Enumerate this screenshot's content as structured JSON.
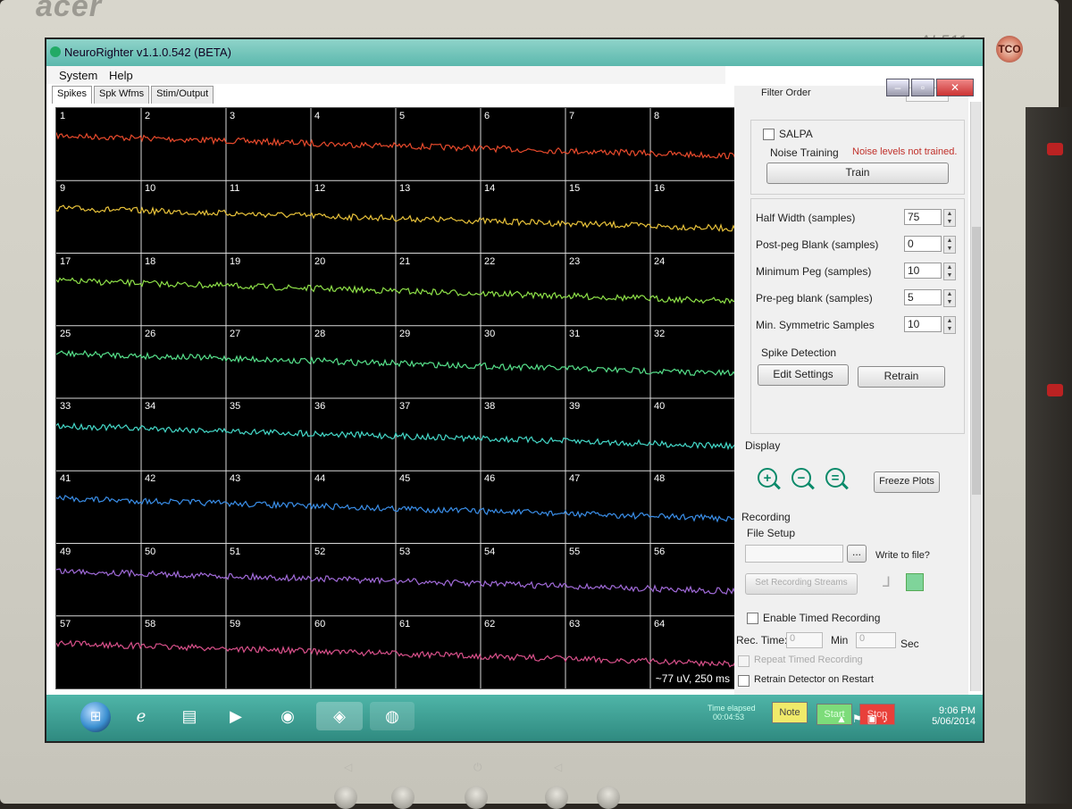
{
  "monitor": {
    "brand": "acer",
    "model": "AL511",
    "badge": "TCO"
  },
  "window": {
    "title": "NeuroRighter v1.1.0.542 (BETA)",
    "menu": [
      "System",
      "Help"
    ],
    "tabs": [
      "Spikes",
      "Spk Wfms",
      "Stim/Output"
    ]
  },
  "plot": {
    "channels": [
      "1",
      "2",
      "3",
      "4",
      "5",
      "6",
      "7",
      "8",
      "9",
      "10",
      "11",
      "12",
      "13",
      "14",
      "15",
      "16",
      "17",
      "18",
      "19",
      "20",
      "21",
      "22",
      "23",
      "24",
      "25",
      "26",
      "27",
      "28",
      "29",
      "30",
      "31",
      "32",
      "33",
      "34",
      "35",
      "36",
      "37",
      "38",
      "39",
      "40",
      "41",
      "42",
      "43",
      "44",
      "45",
      "46",
      "47",
      "48",
      "49",
      "50",
      "51",
      "52",
      "53",
      "54",
      "55",
      "56",
      "57",
      "58",
      "59",
      "60",
      "61",
      "62",
      "63",
      "64"
    ],
    "row_colors": [
      "#e84a2c",
      "#e8c23a",
      "#8ee048",
      "#56e08a",
      "#44d8c8",
      "#3a8ee8",
      "#a06ad8",
      "#d8508a"
    ],
    "scale": "~77 uV, 250 ms"
  },
  "panel": {
    "filter_order": "Filter Order",
    "salpa": "SALPA",
    "noise_training": "Noise Training",
    "noise_status": "Noise levels not trained.",
    "train": "Train",
    "params": [
      {
        "label": "Half Width (samples)",
        "value": "75"
      },
      {
        "label": "Post-peg Blank (samples)",
        "value": "0"
      },
      {
        "label": "Minimum Peg (samples)",
        "value": "10"
      },
      {
        "label": "Pre-peg blank (samples)",
        "value": "5"
      },
      {
        "label": "Min. Symmetric Samples",
        "value": "10"
      }
    ],
    "spike_detection": "Spike Detection",
    "edit_settings": "Edit Settings",
    "retrain": "Retrain",
    "display": "Display",
    "freeze_plots": "Freeze Plots",
    "recording": "Recording",
    "file_setup": "File Setup",
    "browse": "...",
    "write_to_file": "Write to file?",
    "set_streams": "Set Recording Streams",
    "enable_timed": "Enable Timed Recording",
    "rec_time": "Rec. Time:",
    "min_value": "0",
    "min_label": "Min",
    "sec_value": "0",
    "sec_label": "Sec",
    "repeat_timed": "Repeat Timed Recording",
    "retrain_on_restart": "Retrain Detector on Restart",
    "time_elapsed": "Time elapsed",
    "elapsed_value": "00:04:53",
    "note": "Note",
    "start": "Start",
    "stop": "Stop"
  },
  "taskbar": {
    "time": "9:06 PM",
    "date": "5/06/2014"
  }
}
